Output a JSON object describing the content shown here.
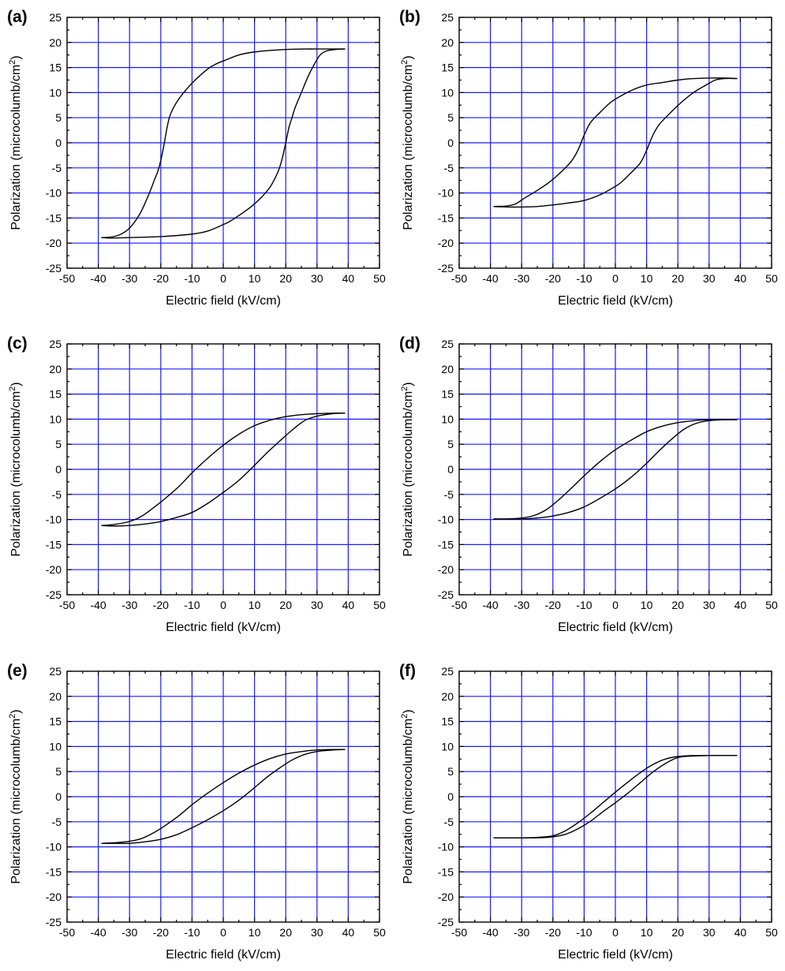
{
  "figure": {
    "colors": {
      "grid": "#1a1aff",
      "curve": "#000000",
      "frame": "#000000"
    }
  },
  "chart_data": [
    {
      "type": "line",
      "panel_label": "(a)",
      "xlabel": "Electric field (kV/cm)",
      "ylabel": "Polarization (microcolumb/cm",
      "ylabel_sup": "2",
      "ylabel_end": ")",
      "xlim": [
        -50,
        50
      ],
      "ylim": [
        -25,
        25
      ],
      "grid": true,
      "x_ticks": [
        "-50",
        "-40",
        "-30",
        "-20",
        "-10",
        "0",
        "10",
        "20",
        "30",
        "40",
        "50"
      ],
      "y_ticks": [
        "25",
        "20",
        "15",
        "10",
        "5",
        "0",
        "-5",
        "-10",
        "-15",
        "-20",
        "-25"
      ],
      "series": [
        {
          "x": [
            -39,
            -36,
            -33,
            -30,
            -27,
            -25,
            -23,
            -22,
            -21,
            -20,
            -19,
            -18,
            -17,
            -15,
            -12,
            -9,
            -5,
            -2,
            0,
            5,
            10,
            20,
            30,
            36,
            39
          ],
          "y": [
            -18.9,
            -18.8,
            -18.3,
            -17.0,
            -14.5,
            -12.0,
            -9.0,
            -7.3,
            -5.8,
            -3.5,
            -0.5,
            3.0,
            5.5,
            8.0,
            10.5,
            12.5,
            14.7,
            15.8,
            16.3,
            17.5,
            18.1,
            18.6,
            18.7,
            18.7,
            18.7
          ]
        },
        {
          "x": [
            39,
            36,
            33,
            31,
            29,
            27,
            25,
            23,
            22,
            21,
            20,
            19,
            18,
            17,
            15,
            12,
            9,
            5,
            2,
            0,
            -5,
            -10,
            -20,
            -30,
            -36,
            -39
          ],
          "y": [
            18.7,
            18.6,
            18.3,
            17.5,
            15.5,
            13.0,
            10.0,
            7.0,
            5.0,
            3.0,
            0.0,
            -2.8,
            -5.0,
            -6.5,
            -8.8,
            -11.0,
            -12.7,
            -14.5,
            -15.7,
            -16.3,
            -17.6,
            -18.2,
            -18.7,
            -18.9,
            -19.0,
            -18.9
          ]
        }
      ]
    },
    {
      "type": "line",
      "panel_label": "(b)",
      "xlabel": "Electric field (kV/cm)",
      "ylabel": "Polarization (microcolumb/cm",
      "ylabel_sup": "2",
      "ylabel_end": ")",
      "xlim": [
        -50,
        50
      ],
      "ylim": [
        -25,
        25
      ],
      "grid": true,
      "x_ticks": [
        "-50",
        "-40",
        "-30",
        "-20",
        "-10",
        "0",
        "10",
        "20",
        "30",
        "40",
        "50"
      ],
      "y_ticks": [
        "25",
        "20",
        "15",
        "10",
        "5",
        "0",
        "-5",
        "-10",
        "-15",
        "-20",
        "-25"
      ],
      "series": [
        {
          "x": [
            -39,
            -35,
            -32,
            -29,
            -25,
            -21,
            -17,
            -14,
            -12,
            -10,
            -8,
            -5,
            -2,
            0,
            5,
            10,
            15,
            20,
            25,
            30,
            35,
            39
          ],
          "y": [
            -12.7,
            -12.6,
            -12.2,
            -11.0,
            -9.5,
            -7.8,
            -5.6,
            -3.6,
            -1.5,
            1.5,
            4.0,
            6.0,
            7.8,
            8.7,
            10.4,
            11.5,
            12.0,
            12.5,
            12.8,
            12.9,
            12.9,
            12.8
          ]
        },
        {
          "x": [
            39,
            35,
            32,
            29,
            25,
            21,
            17,
            14,
            12,
            10,
            8,
            5,
            2,
            0,
            -5,
            -10,
            -15,
            -20,
            -25,
            -30,
            -35,
            -39
          ],
          "y": [
            12.8,
            12.8,
            12.5,
            11.5,
            10.0,
            8.0,
            5.6,
            3.6,
            1.5,
            -1.5,
            -4.0,
            -6.0,
            -7.8,
            -8.7,
            -10.4,
            -11.5,
            -12.0,
            -12.4,
            -12.7,
            -12.8,
            -12.8,
            -12.7
          ]
        }
      ]
    },
    {
      "type": "line",
      "panel_label": "(c)",
      "xlabel": "Electric field (kV/cm)",
      "ylabel": "Polarization (microcolumb/cm",
      "ylabel_sup": "2",
      "ylabel_end": ")",
      "xlim": [
        -50,
        50
      ],
      "ylim": [
        -25,
        25
      ],
      "grid": true,
      "x_ticks": [
        "-50",
        "-40",
        "-30",
        "-20",
        "-10",
        "0",
        "10",
        "20",
        "30",
        "40",
        "50"
      ],
      "y_ticks": [
        "25",
        "20",
        "15",
        "10",
        "5",
        "0",
        "-5",
        "-10",
        "-15",
        "-20",
        "-25"
      ],
      "series": [
        {
          "x": [
            -39,
            -35,
            -30,
            -26,
            -22,
            -18,
            -14,
            -10,
            -5,
            0,
            5,
            10,
            15,
            20,
            25,
            30,
            35,
            39
          ],
          "y": [
            -11.2,
            -11.0,
            -10.4,
            -9.3,
            -7.5,
            -5.5,
            -3.3,
            -0.7,
            2.2,
            4.8,
            7.0,
            8.7,
            9.8,
            10.5,
            10.9,
            11.1,
            11.2,
            11.2
          ]
        },
        {
          "x": [
            39,
            35,
            30,
            26,
            22,
            18,
            14,
            10,
            5,
            0,
            -5,
            -10,
            -15,
            -20,
            -25,
            -30,
            -35,
            -39
          ],
          "y": [
            11.2,
            11.1,
            10.6,
            9.7,
            7.8,
            5.6,
            3.3,
            0.8,
            -2.2,
            -4.6,
            -6.8,
            -8.6,
            -9.6,
            -10.4,
            -10.9,
            -11.2,
            -11.3,
            -11.2
          ]
        }
      ]
    },
    {
      "type": "line",
      "panel_label": "(d)",
      "xlabel": "Electric field (kV/cm)",
      "ylabel": "Polarization (microcolumb/cm",
      "ylabel_sup": "2",
      "ylabel_end": ")",
      "xlim": [
        -50,
        50
      ],
      "ylim": [
        -25,
        25
      ],
      "grid": true,
      "x_ticks": [
        "-50",
        "-40",
        "-30",
        "-20",
        "-10",
        "0",
        "10",
        "20",
        "30",
        "40",
        "50"
      ],
      "y_ticks": [
        "25",
        "20",
        "15",
        "10",
        "5",
        "0",
        "-5",
        "-10",
        "-15",
        "-20",
        "-25"
      ],
      "series": [
        {
          "x": [
            -39,
            -35,
            -30,
            -26,
            -22,
            -18,
            -14,
            -10,
            -5,
            0,
            5,
            10,
            15,
            20,
            25,
            30,
            35,
            39
          ],
          "y": [
            -9.9,
            -9.9,
            -9.7,
            -9.2,
            -8.0,
            -6.0,
            -3.7,
            -1.3,
            1.5,
            3.9,
            5.8,
            7.5,
            8.6,
            9.3,
            9.7,
            9.9,
            9.9,
            9.9
          ]
        },
        {
          "x": [
            39,
            35,
            30,
            26,
            22,
            18,
            14,
            10,
            5,
            0,
            -5,
            -10,
            -15,
            -20,
            -25,
            -30,
            -35,
            -39
          ],
          "y": [
            9.9,
            9.9,
            9.7,
            9.2,
            8.0,
            6.0,
            3.7,
            1.2,
            -1.6,
            -3.9,
            -5.8,
            -7.5,
            -8.6,
            -9.3,
            -9.7,
            -9.9,
            -9.9,
            -9.9
          ]
        }
      ]
    },
    {
      "type": "line",
      "panel_label": "(e)",
      "xlabel": "Electric field (kV/cm)",
      "ylabel": "Polarization (microcolumb/cm",
      "ylabel_sup": "2",
      "ylabel_end": ")",
      "xlim": [
        -50,
        50
      ],
      "ylim": [
        -25,
        25
      ],
      "grid": true,
      "x_ticks": [
        "-50",
        "-40",
        "-30",
        "-20",
        "-10",
        "0",
        "10",
        "20",
        "30",
        "40",
        "50"
      ],
      "y_ticks": [
        "25",
        "20",
        "15",
        "10",
        "5",
        "0",
        "-5",
        "-10",
        "-15",
        "-20",
        "-25"
      ],
      "series": [
        {
          "x": [
            -39,
            -35,
            -30,
            -26,
            -22,
            -18,
            -14,
            -10,
            -5,
            0,
            5,
            10,
            15,
            20,
            25,
            30,
            35,
            39
          ],
          "y": [
            -9.3,
            -9.2,
            -8.9,
            -8.3,
            -7.1,
            -5.5,
            -3.7,
            -1.6,
            0.7,
            2.8,
            4.7,
            6.3,
            7.6,
            8.5,
            9.0,
            9.3,
            9.4,
            9.4
          ]
        },
        {
          "x": [
            39,
            35,
            30,
            26,
            22,
            18,
            14,
            10,
            5,
            0,
            -5,
            -10,
            -15,
            -20,
            -25,
            -30,
            -35,
            -39
          ],
          "y": [
            9.4,
            9.3,
            9.0,
            8.4,
            7.3,
            5.7,
            3.9,
            1.8,
            -0.7,
            -2.8,
            -4.6,
            -6.2,
            -7.6,
            -8.5,
            -9.0,
            -9.3,
            -9.3,
            -9.3
          ]
        }
      ]
    },
    {
      "type": "line",
      "panel_label": "(f)",
      "xlabel": "Electric field (kV/cm)",
      "ylabel": "Polarization (microcolumb/cm",
      "ylabel_sup": "2",
      "ylabel_end": ")",
      "xlim": [
        -50,
        50
      ],
      "ylim": [
        -25,
        25
      ],
      "grid": true,
      "x_ticks": [
        "-50",
        "-40",
        "-30",
        "-20",
        "-10",
        "0",
        "10",
        "20",
        "30",
        "40",
        "50"
      ],
      "y_ticks": [
        "25",
        "20",
        "15",
        "10",
        "5",
        "0",
        "-5",
        "-10",
        "-15",
        "-20",
        "-25"
      ],
      "series": [
        {
          "x": [
            -39,
            -35,
            -30,
            -25,
            -20,
            -16,
            -12,
            -8,
            -4,
            0,
            4,
            8,
            12,
            16,
            20,
            25,
            30,
            35,
            39
          ],
          "y": [
            -8.2,
            -8.2,
            -8.2,
            -8.1,
            -7.8,
            -6.8,
            -5.2,
            -3.3,
            -1.2,
            0.9,
            2.9,
            4.8,
            6.4,
            7.5,
            8.0,
            8.2,
            8.2,
            8.2,
            8.2
          ]
        },
        {
          "x": [
            39,
            35,
            30,
            25,
            20,
            16,
            12,
            8,
            4,
            0,
            -4,
            -8,
            -12,
            -16,
            -20,
            -25,
            -30,
            -35,
            -39
          ],
          "y": [
            8.2,
            8.2,
            8.2,
            8.1,
            7.8,
            6.6,
            4.9,
            2.8,
            0.7,
            -1.2,
            -3.0,
            -4.9,
            -6.4,
            -7.5,
            -8.0,
            -8.2,
            -8.2,
            -8.2,
            -8.2
          ]
        }
      ]
    }
  ]
}
